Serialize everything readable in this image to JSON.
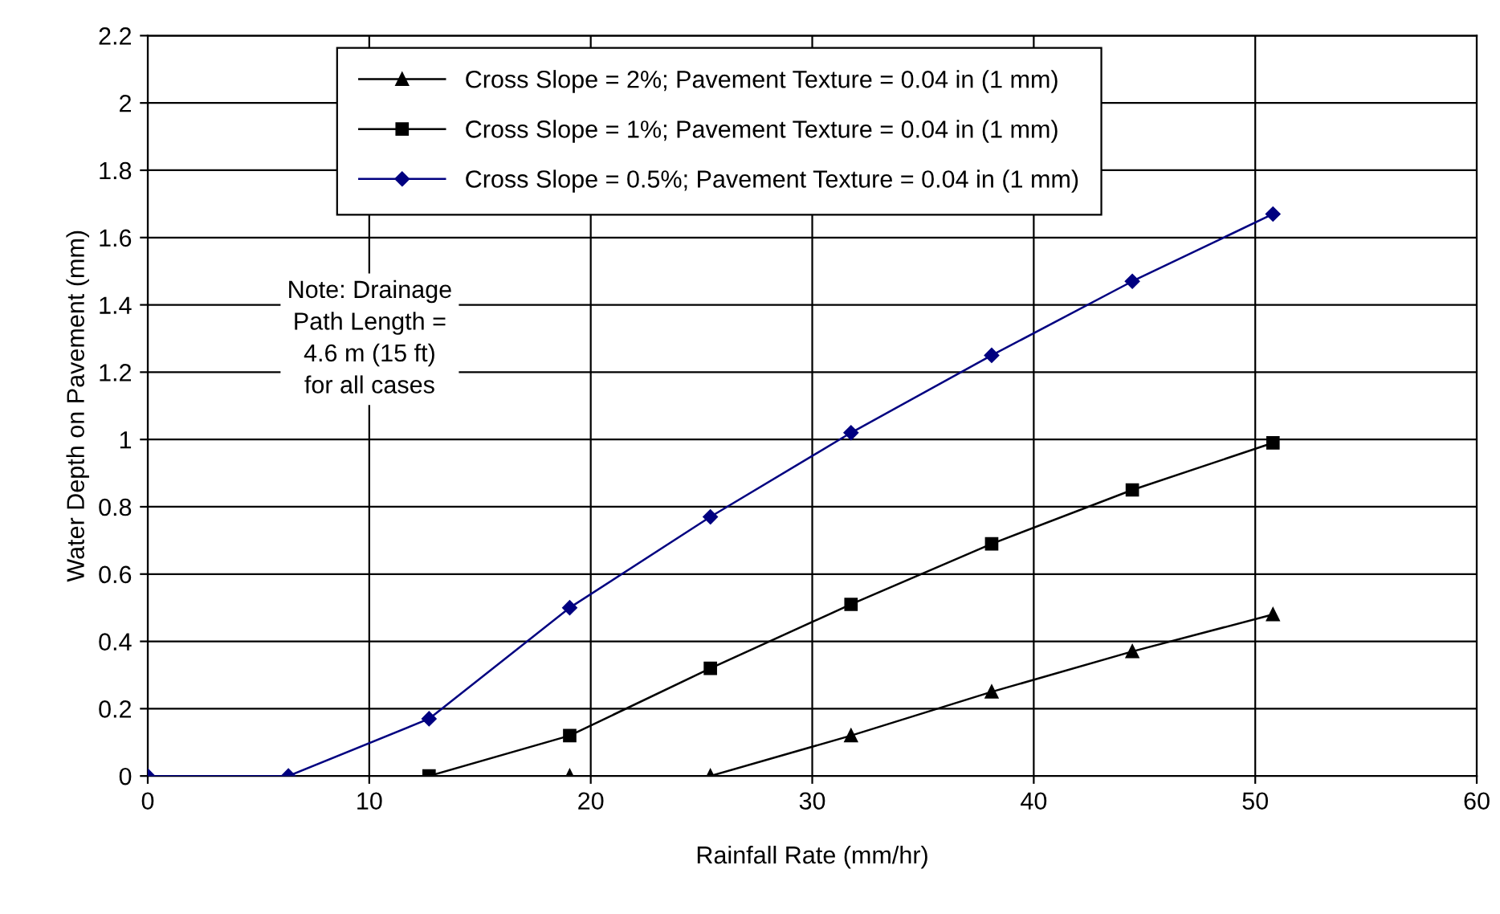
{
  "chart_data": {
    "type": "line",
    "xlabel": "Rainfall Rate (mm/hr)",
    "ylabel": "Water Depth on Pavement (mm)",
    "x": [
      0,
      6.35,
      12.7,
      19.05,
      25.4,
      31.75,
      38.1,
      44.45,
      50.8
    ],
    "series": [
      {
        "name": "Cross Slope = 2%; Pavement Texture = 0.04 in (1 mm)",
        "color": "#000000",
        "marker": "triangle",
        "values": [
          null,
          null,
          null,
          0,
          0,
          0.12,
          0.25,
          0.37,
          0.48
        ]
      },
      {
        "name": "Cross Slope = 1%; Pavement Texture = 0.04 in (1 mm)",
        "color": "#000000",
        "marker": "square",
        "values": [
          null,
          null,
          0,
          0.12,
          0.32,
          0.51,
          0.69,
          0.85,
          0.99
        ]
      },
      {
        "name": "Cross Slope = 0.5%; Pavement Texture = 0.04 in (1 mm)",
        "color": "#000080",
        "marker": "diamond",
        "values": [
          0,
          0,
          0.17,
          0.5,
          0.77,
          1.02,
          1.25,
          1.47,
          1.67
        ]
      }
    ],
    "annotations": [
      "Note: Drainage\nPath Length =\n4.6 m (15 ft)\nfor all cases"
    ],
    "xlim": [
      0,
      60
    ],
    "xticks": [
      0,
      10,
      20,
      30,
      40,
      50,
      60
    ],
    "ylim": [
      0,
      2.2
    ],
    "yticks": [
      0,
      0.2,
      0.4,
      0.6,
      0.8,
      1,
      1.2,
      1.4,
      1.6,
      1.8,
      2,
      2.2
    ],
    "grid": true,
    "legend": "top",
    "line_style": "solid"
  }
}
